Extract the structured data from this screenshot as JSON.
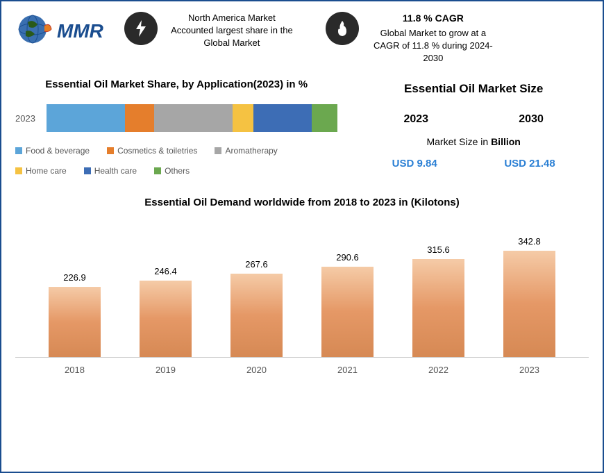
{
  "header": {
    "logo_text": "MMR",
    "info1": {
      "line1": "North America Market",
      "line2": "Accounted largest share in the",
      "line3": "Global Market"
    },
    "info2": {
      "title": "11.8 % CAGR",
      "line1": "Global Market to grow at a",
      "line2": "CAGR of 11.8 % during 2024-",
      "line3": "2030"
    }
  },
  "chart1": {
    "title": "Essential Oil Market Share, by Application(2023) in %",
    "year_label": "2023",
    "segments": [
      {
        "label": "Food & beverage",
        "color": "#5ca5d9",
        "pct": 27
      },
      {
        "label": "Cosmetics & toiletries",
        "color": "#e57e2c",
        "pct": 10
      },
      {
        "label": "Aromatherapy",
        "color": "#a6a6a6",
        "pct": 27
      },
      {
        "label": "Home care",
        "color": "#f5c242",
        "pct": 7
      },
      {
        "label": "Health care",
        "color": "#3d6db5",
        "pct": 20
      },
      {
        "label": "Others",
        "color": "#6ba84f",
        "pct": 9
      }
    ]
  },
  "market_size": {
    "title": "Essential Oil Market Size",
    "year1": "2023",
    "year2": "2030",
    "subtitle_prefix": "Market Size in ",
    "subtitle_bold": "Billion",
    "value1": "USD 9.84",
    "value2": "USD 21.48",
    "value_color": "#2a7fd4"
  },
  "chart2": {
    "title": "Essential Oil Demand worldwide  from 2018 to 2023 in (Kilotons)",
    "max_value": 380,
    "bar_gradient": {
      "top": "#f5cba7",
      "mid": "#e59866",
      "bottom": "#d68954"
    },
    "data": [
      {
        "year": "2018",
        "value": 226.9
      },
      {
        "year": "2019",
        "value": 246.4
      },
      {
        "year": "2020",
        "value": 267.6
      },
      {
        "year": "2021",
        "value": 290.6
      },
      {
        "year": "2022",
        "value": 315.6
      },
      {
        "year": "2023",
        "value": 342.8
      }
    ]
  },
  "colors": {
    "border": "#1a4d8f",
    "icon_bg": "#2a2a2a",
    "icon_fg": "#ffffff"
  }
}
